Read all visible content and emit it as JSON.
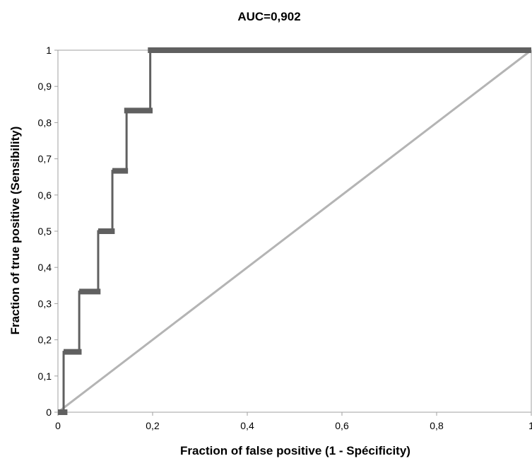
{
  "chart_data": {
    "type": "line",
    "title": "AUC=0,902",
    "xlabel": "Fraction of false positive (1 - Spécificity)",
    "ylabel": "Fraction of true positive (Sensibility)",
    "xlim": [
      0,
      1
    ],
    "ylim": [
      0,
      1
    ],
    "x_ticks": [
      "0",
      "0,2",
      "0,4",
      "0,6",
      "0,8",
      "1"
    ],
    "x_tick_values": [
      0,
      0.2,
      0.4,
      0.6,
      0.8,
      1
    ],
    "y_ticks": [
      "0",
      "0,1",
      "0,2",
      "0,3",
      "0,4",
      "0,5",
      "0,6",
      "0,7",
      "0,8",
      "0,9",
      "1"
    ],
    "y_tick_values": [
      0,
      0.1,
      0.2,
      0.3,
      0.4,
      0.5,
      0.6,
      0.7,
      0.8,
      0.9,
      1
    ],
    "grid": false,
    "legend": "none",
    "series": [
      {
        "color": "#606060",
        "style": "step",
        "x": [
          0,
          0.012,
          0.012,
          0.045,
          0.045,
          0.085,
          0.085,
          0.115,
          0.115,
          0.145,
          0.145,
          0.195,
          0.195,
          1
        ],
        "y": [
          0,
          0,
          0.1667,
          0.1667,
          0.3333,
          0.3333,
          0.5,
          0.5,
          0.6667,
          0.6667,
          0.8333,
          0.8333,
          1,
          1
        ],
        "markers": [
          {
            "x0": 0,
            "x1": 0.02,
            "y": 0
          },
          {
            "x0": 0.012,
            "x1": 0.05,
            "y": 0.1667
          },
          {
            "x0": 0.045,
            "x1": 0.09,
            "y": 0.3333
          },
          {
            "x0": 0.085,
            "x1": 0.12,
            "y": 0.5
          },
          {
            "x0": 0.115,
            "x1": 0.148,
            "y": 0.6667
          },
          {
            "x0": 0.14,
            "x1": 0.2,
            "y": 0.8333
          },
          {
            "x0": 0.19,
            "x1": 1,
            "y": 1
          }
        ]
      },
      {
        "color": "#b4b4b4",
        "style": "line",
        "x": [
          0,
          1
        ],
        "y": [
          0,
          1
        ]
      }
    ]
  }
}
